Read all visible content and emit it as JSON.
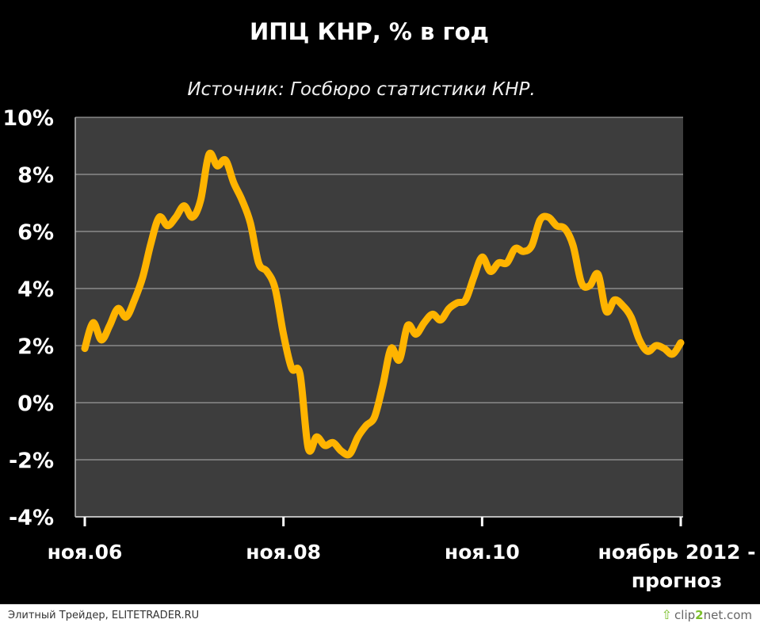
{
  "chart_data": {
    "type": "line",
    "title": "ИПЦ КНР, % в год",
    "subtitle": "Источник: Госбюро статистики КНР.",
    "ylim": [
      -4,
      10
    ],
    "yticks": [
      "10%",
      "8%",
      "6%",
      "4%",
      "2%",
      "0%",
      "-2%",
      "-4%"
    ],
    "ytick_values": [
      10,
      8,
      6,
      4,
      2,
      0,
      -2,
      -4
    ],
    "xlim": [
      0,
      72
    ],
    "xticks": [
      {
        "index": 0,
        "label": "ноя.06"
      },
      {
        "index": 24,
        "label": "ноя.08"
      },
      {
        "index": 48,
        "label": "ноя.10"
      },
      {
        "index": 72,
        "label": "ноябрь 2012 - прогноз",
        "lines": [
          "ноябрь 2012 -",
          "прогноз"
        ]
      }
    ],
    "grid": true,
    "colors": {
      "line": "#FFB400",
      "plot_bg": "#3d3d3d",
      "grid": "#9a9a9a",
      "background": "#000000"
    },
    "series": [
      {
        "values": [
          1.9,
          2.8,
          2.2,
          2.7,
          3.3,
          3.0,
          3.6,
          4.4,
          5.6,
          6.5,
          6.2,
          6.5,
          6.9,
          6.5,
          7.1,
          8.7,
          8.3,
          8.5,
          7.7,
          7.1,
          6.3,
          4.9,
          4.6,
          4.0,
          2.4,
          1.2,
          1.0,
          -1.6,
          -1.2,
          -1.5,
          -1.4,
          -1.7,
          -1.8,
          -1.2,
          -0.8,
          -0.5,
          0.6,
          1.9,
          1.5,
          2.7,
          2.4,
          2.8,
          3.1,
          2.9,
          3.3,
          3.5,
          3.6,
          4.4,
          5.1,
          4.6,
          4.9,
          4.9,
          5.4,
          5.3,
          5.5,
          6.4,
          6.5,
          6.2,
          6.1,
          5.5,
          4.2,
          4.1,
          4.5,
          3.2,
          3.6,
          3.4,
          3.0,
          2.2,
          1.8,
          2.0,
          1.9,
          1.7,
          2.1
        ]
      }
    ]
  },
  "footer": {
    "credit": "Элитный Трейдер, ELITETRADER.RU",
    "logo_pre": "clip",
    "logo_num": "2",
    "logo_post": "net.com"
  }
}
